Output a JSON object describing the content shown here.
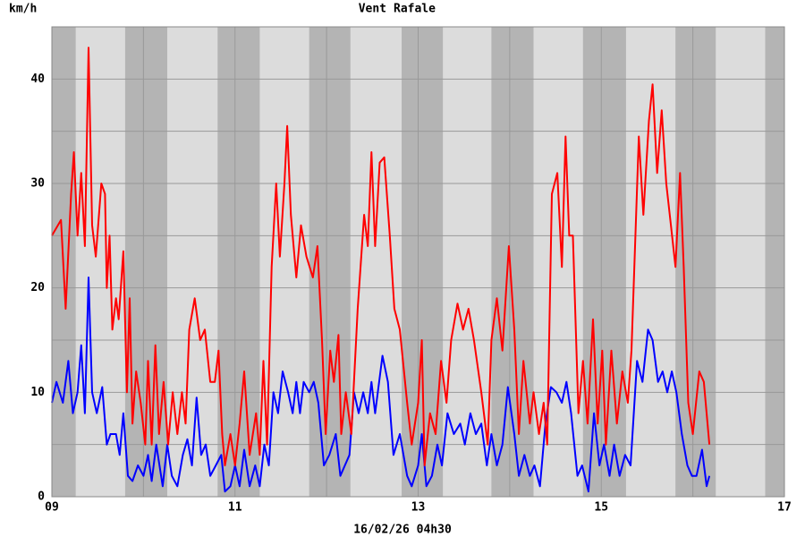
{
  "chart_data": {
    "type": "line",
    "y_label": "km/h",
    "x_label": "16/02/26 04h30",
    "xlim": [
      9,
      17
    ],
    "xticks": [
      {
        "value": 9,
        "label": "09"
      },
      11,
      13,
      15,
      17
    ],
    "minor_xticks": [
      10,
      12,
      14,
      16
    ],
    "ylim": [
      0,
      45
    ],
    "yticks": [
      0,
      10,
      20,
      30,
      40
    ],
    "minor_yticks": [
      5,
      15,
      25,
      35
    ],
    "grid": true,
    "shaded_ranges": [
      [
        9,
        9.26
      ],
      [
        9.8,
        10.26
      ],
      [
        10.81,
        11.27
      ],
      [
        11.81,
        12.26
      ],
      [
        12.82,
        13.27
      ],
      [
        13.8,
        14.26
      ],
      [
        14.8,
        15.27
      ],
      [
        15.81,
        16.25
      ],
      [
        16.79,
        17
      ]
    ],
    "series": [
      {
        "name": "Vent",
        "color": "#0000ff",
        "x": [
          9,
          9.05,
          9.12,
          9.18,
          9.23,
          9.28,
          9.32,
          9.36,
          9.4,
          9.44,
          9.49,
          9.55,
          9.6,
          9.64,
          9.7,
          9.74,
          9.78,
          9.83,
          9.88,
          9.94,
          10,
          10.05,
          10.09,
          10.14,
          10.21,
          10.26,
          10.31,
          10.37,
          10.43,
          10.48,
          10.53,
          10.58,
          10.63,
          10.68,
          10.73,
          10.79,
          10.85,
          10.89,
          10.95,
          11,
          11.05,
          11.1,
          11.16,
          11.22,
          11.27,
          11.32,
          11.37,
          11.42,
          11.47,
          11.52,
          11.58,
          11.63,
          11.67,
          11.71,
          11.75,
          11.81,
          11.86,
          11.91,
          11.97,
          12.03,
          12.1,
          12.15,
          12.2,
          12.25,
          12.3,
          12.35,
          12.4,
          12.45,
          12.49,
          12.53,
          12.61,
          12.67,
          12.73,
          12.8,
          12.88,
          12.93,
          13,
          13.04,
          13.09,
          13.15,
          13.21,
          13.26,
          13.32,
          13.39,
          13.46,
          13.51,
          13.57,
          13.63,
          13.69,
          13.75,
          13.8,
          13.86,
          13.92,
          13.98,
          14.05,
          14.1,
          14.16,
          14.22,
          14.27,
          14.33,
          14.39,
          14.45,
          14.51,
          14.57,
          14.62,
          14.67,
          14.74,
          14.79,
          14.86,
          14.92,
          14.98,
          15.03,
          15.09,
          15.14,
          15.2,
          15.26,
          15.32,
          15.39,
          15.45,
          15.51,
          15.56,
          15.62,
          15.67,
          15.72,
          15.77,
          15.82,
          15.88,
          15.94,
          15.99,
          16.04,
          16.1,
          16.15,
          16.18
        ],
        "values": [
          9,
          11,
          9,
          13,
          8,
          10,
          14.5,
          8,
          21,
          10,
          8,
          10.5,
          5,
          6,
          6,
          4,
          8,
          2,
          1.5,
          3,
          2,
          4,
          1.5,
          5,
          1,
          5,
          2,
          1,
          4,
          5.5,
          3,
          9.5,
          4,
          5,
          2,
          3,
          4,
          0.5,
          1,
          3,
          1,
          4.5,
          1,
          3,
          1,
          5,
          3,
          10,
          8,
          12,
          10,
          8,
          11,
          8,
          11,
          10,
          11,
          9,
          3,
          4,
          6,
          2,
          3,
          4,
          10,
          8,
          10,
          8,
          11,
          8,
          13.5,
          11,
          4,
          6,
          2,
          1,
          3,
          6,
          1,
          2,
          5,
          3,
          8,
          6,
          7,
          5,
          8,
          6,
          7,
          3,
          6,
          3,
          5,
          10.5,
          6,
          2,
          4,
          2,
          3,
          1,
          7,
          10.5,
          10,
          9,
          11,
          8,
          2,
          3,
          0.5,
          8,
          3,
          5,
          2,
          5,
          2,
          4,
          3,
          13,
          11,
          16,
          15,
          11,
          12,
          10,
          12,
          10,
          6,
          3,
          2,
          2,
          4.5,
          1,
          2
        ]
      },
      {
        "name": "Rafale",
        "color": "#ff0000",
        "x": [
          9,
          9.1,
          9.15,
          9.21,
          9.24,
          9.28,
          9.32,
          9.36,
          9.4,
          9.44,
          9.48,
          9.54,
          9.58,
          9.6,
          9.63,
          9.66,
          9.7,
          9.73,
          9.78,
          9.82,
          9.85,
          9.88,
          9.92,
          9.97,
          10.02,
          10.05,
          10.09,
          10.13,
          10.17,
          10.22,
          10.27,
          10.32,
          10.37,
          10.42,
          10.46,
          10.5,
          10.56,
          10.62,
          10.67,
          10.73,
          10.78,
          10.82,
          10.86,
          10.89,
          10.95,
          11,
          11.05,
          11.1,
          11.16,
          11.23,
          11.27,
          11.31,
          11.35,
          11.4,
          11.45,
          11.49,
          11.54,
          11.57,
          11.61,
          11.67,
          11.72,
          11.78,
          11.85,
          11.9,
          11.95,
          11.99,
          12.04,
          12.08,
          12.13,
          12.16,
          12.21,
          12.27,
          12.34,
          12.41,
          12.45,
          12.49,
          12.53,
          12.58,
          12.63,
          12.69,
          12.74,
          12.8,
          12.88,
          12.93,
          13,
          13.04,
          13.07,
          13.13,
          13.19,
          13.25,
          13.31,
          13.36,
          13.43,
          13.49,
          13.55,
          13.61,
          13.69,
          13.76,
          13.8,
          13.86,
          13.92,
          13.99,
          14.05,
          14.1,
          14.15,
          14.22,
          14.26,
          14.32,
          14.37,
          14.41,
          14.46,
          14.52,
          14.57,
          14.61,
          14.65,
          14.69,
          14.75,
          14.8,
          14.85,
          14.91,
          14.96,
          15.01,
          15.05,
          15.11,
          15.17,
          15.23,
          15.29,
          15.33,
          15.41,
          15.46,
          15.52,
          15.56,
          15.61,
          15.66,
          15.71,
          15.76,
          15.81,
          15.86,
          15.9,
          15.95,
          16,
          16.07,
          16.12,
          16.18
        ],
        "values": [
          25,
          26.5,
          18,
          29,
          33,
          25,
          31,
          24,
          43,
          26,
          23,
          30,
          29,
          20,
          25,
          16,
          19,
          17,
          23.5,
          10,
          19,
          7,
          12,
          9,
          5,
          13,
          5,
          14.5,
          6,
          11,
          5,
          10,
          6,
          10,
          7,
          16,
          19,
          15,
          16,
          11,
          11,
          14,
          6,
          3,
          6,
          3,
          7,
          12,
          4,
          8,
          4,
          13,
          5,
          22,
          30,
          23,
          30,
          35.5,
          27,
          21,
          26,
          23,
          21,
          24,
          15,
          6,
          14,
          11,
          15.5,
          6,
          10,
          6,
          18,
          27,
          24,
          33,
          24,
          32,
          32.5,
          25,
          18,
          16,
          9,
          5,
          9,
          15,
          3,
          8,
          6,
          13,
          9,
          15,
          18.5,
          16,
          18,
          15,
          10,
          5,
          15,
          19,
          14,
          24,
          16,
          6,
          13,
          7,
          10,
          6,
          9,
          5,
          29,
          31,
          22,
          34.5,
          25,
          25,
          8,
          13,
          7,
          17,
          7,
          14,
          5,
          14,
          7,
          12,
          9,
          14,
          34.5,
          27,
          36,
          39.5,
          31,
          37,
          30,
          26,
          22,
          31,
          22,
          9,
          6,
          12,
          11,
          5
        ]
      }
    ]
  }
}
